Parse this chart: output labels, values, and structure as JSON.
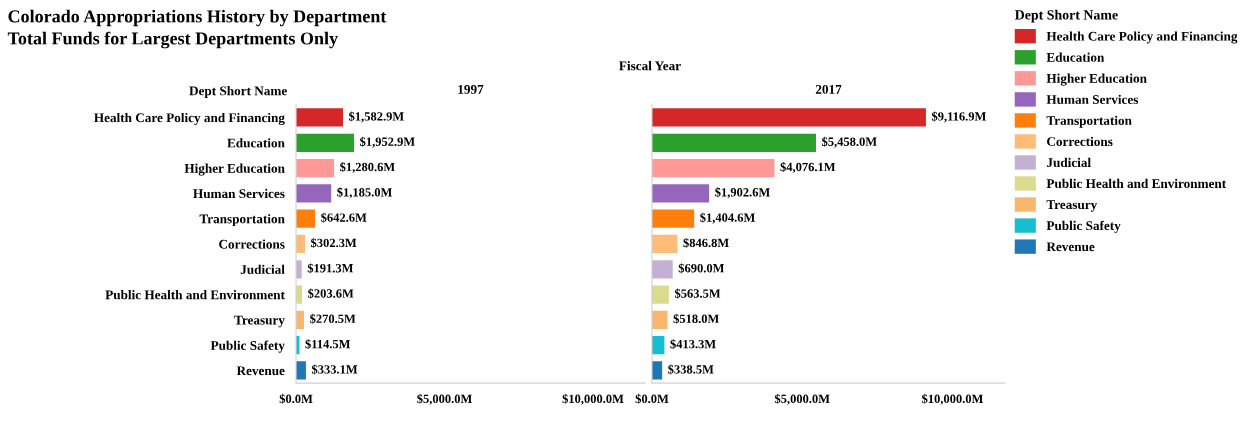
{
  "chart_data": [
    {
      "type": "bar",
      "orientation": "horizontal",
      "stacked": true,
      "title": "1997",
      "annotations": [
        "Colorado Appropriations History by Department",
        "Total Funds for Largest Departments Only",
        "Fiscal Year",
        "Dept Short Name"
      ],
      "categories": [
        "Health Care Policy and Financing",
        "Education",
        "Higher Education",
        "Human Services",
        "Transportation",
        "Corrections",
        "Judicial",
        "Public Health and Environment",
        "Treasury",
        "Public Safety",
        "Revenue"
      ],
      "series": [
        {
          "color": "#d62728",
          "values": [
            1582.9,
            null,
            null,
            null,
            null,
            null,
            null,
            null,
            null,
            null,
            null
          ],
          "value_labels": [
            "$1,582.9M",
            null,
            null,
            null,
            null,
            null,
            null,
            null,
            null,
            null,
            null
          ]
        },
        {
          "color": "#2ca02c",
          "values": [
            null,
            1952.9,
            null,
            null,
            null,
            null,
            null,
            null,
            null,
            null,
            null
          ],
          "value_labels": [
            null,
            "$1,952.9M",
            null,
            null,
            null,
            null,
            null,
            null,
            null,
            null,
            null
          ]
        },
        {
          "color": "#ff9896",
          "values": [
            null,
            null,
            1280.6,
            null,
            null,
            null,
            null,
            null,
            null,
            null,
            null
          ],
          "value_labels": [
            null,
            null,
            "$1,280.6M",
            null,
            null,
            null,
            null,
            null,
            null,
            null,
            null
          ]
        },
        {
          "color": "#9467bd",
          "values": [
            null,
            null,
            null,
            1185.0,
            null,
            null,
            null,
            null,
            null,
            null,
            null
          ],
          "value_labels": [
            null,
            null,
            null,
            "$1,185.0M",
            null,
            null,
            null,
            null,
            null,
            null,
            null
          ]
        },
        {
          "color": "#ff7f0e",
          "values": [
            null,
            null,
            null,
            null,
            642.6,
            null,
            null,
            null,
            null,
            null,
            null
          ],
          "value_labels": [
            null,
            null,
            null,
            null,
            "$642.6M",
            null,
            null,
            null,
            null,
            null,
            null
          ]
        },
        {
          "color": "#ffbb78",
          "values": [
            null,
            null,
            null,
            null,
            null,
            302.3,
            null,
            null,
            null,
            null,
            null
          ],
          "value_labels": [
            null,
            null,
            null,
            null,
            null,
            "$302.3M",
            null,
            null,
            null,
            null,
            null
          ]
        },
        {
          "color": "#c5b0d5",
          "values": [
            null,
            null,
            null,
            null,
            null,
            null,
            191.3,
            null,
            null,
            null,
            null
          ],
          "value_labels": [
            null,
            null,
            null,
            null,
            null,
            null,
            "$191.3M",
            null,
            null,
            null,
            null
          ]
        },
        {
          "color": "#dbdb8d",
          "values": [
            null,
            null,
            null,
            null,
            null,
            null,
            null,
            203.6,
            null,
            null,
            null
          ],
          "value_labels": [
            null,
            null,
            null,
            null,
            null,
            null,
            null,
            "$203.6M",
            null,
            null,
            null
          ]
        },
        {
          "color": "#f7b76f",
          "values": [
            null,
            null,
            null,
            null,
            null,
            null,
            null,
            null,
            270.5,
            null,
            null
          ],
          "value_labels": [
            null,
            null,
            null,
            null,
            null,
            null,
            null,
            null,
            "$270.5M",
            null,
            null
          ]
        },
        {
          "color": "#17becf",
          "values": [
            null,
            null,
            null,
            null,
            null,
            null,
            null,
            null,
            null,
            114.5,
            null
          ],
          "value_labels": [
            null,
            null,
            null,
            null,
            null,
            null,
            null,
            null,
            null,
            "$114.5M",
            null
          ]
        },
        {
          "color": "#1f77b4",
          "values": [
            null,
            null,
            null,
            null,
            null,
            null,
            null,
            null,
            null,
            null,
            333.1
          ],
          "value_labels": [
            null,
            null,
            null,
            null,
            null,
            null,
            null,
            null,
            null,
            null,
            "$333.1M"
          ]
        }
      ],
      "xlim": [
        0,
        11750
      ],
      "xticks": [
        {
          "value": 0,
          "label": "$0.0M"
        },
        {
          "value": 5000,
          "label": "$5,000.0M"
        },
        {
          "value": 10000,
          "label": "$10,000.0M"
        }
      ],
      "grid": false,
      "legend": false
    },
    {
      "type": "bar",
      "orientation": "horizontal",
      "stacked": true,
      "title": "2017",
      "legend_title": "Dept Short Name",
      "categories": [
        null,
        null,
        null,
        null,
        null,
        null,
        null,
        null,
        null,
        null,
        null
      ],
      "series": [
        {
          "name": "Health Care Policy and Financing",
          "color": "#d62728",
          "values": [
            9116.9,
            null,
            null,
            null,
            null,
            null,
            null,
            null,
            null,
            null,
            null
          ],
          "value_labels": [
            "$9,116.9M",
            null,
            null,
            null,
            null,
            null,
            null,
            null,
            null,
            null,
            null
          ]
        },
        {
          "name": "Education",
          "color": "#2ca02c",
          "values": [
            null,
            5458.0,
            null,
            null,
            null,
            null,
            null,
            null,
            null,
            null,
            null
          ],
          "value_labels": [
            null,
            "$5,458.0M",
            null,
            null,
            null,
            null,
            null,
            null,
            null,
            null,
            null
          ]
        },
        {
          "name": "Higher Education",
          "color": "#ff9896",
          "values": [
            null,
            null,
            4076.1,
            null,
            null,
            null,
            null,
            null,
            null,
            null,
            null
          ],
          "value_labels": [
            null,
            null,
            "$4,076.1M",
            null,
            null,
            null,
            null,
            null,
            null,
            null,
            null
          ]
        },
        {
          "name": "Human Services",
          "color": "#9467bd",
          "values": [
            null,
            null,
            null,
            1902.6,
            null,
            null,
            null,
            null,
            null,
            null,
            null
          ],
          "value_labels": [
            null,
            null,
            null,
            "$1,902.6M",
            null,
            null,
            null,
            null,
            null,
            null,
            null
          ]
        },
        {
          "name": "Transportation",
          "color": "#ff7f0e",
          "values": [
            null,
            null,
            null,
            null,
            1404.6,
            null,
            null,
            null,
            null,
            null,
            null
          ],
          "value_labels": [
            null,
            null,
            null,
            null,
            "$1,404.6M",
            null,
            null,
            null,
            null,
            null,
            null
          ]
        },
        {
          "name": "Corrections",
          "color": "#ffbb78",
          "values": [
            null,
            null,
            null,
            null,
            null,
            846.8,
            null,
            null,
            null,
            null,
            null
          ],
          "value_labels": [
            null,
            null,
            null,
            null,
            null,
            "$846.8M",
            null,
            null,
            null,
            null,
            null
          ]
        },
        {
          "name": "Judicial",
          "color": "#c5b0d5",
          "values": [
            null,
            null,
            null,
            null,
            null,
            null,
            690.0,
            null,
            null,
            null,
            null
          ],
          "value_labels": [
            null,
            null,
            null,
            null,
            null,
            null,
            "$690.0M",
            null,
            null,
            null,
            null
          ]
        },
        {
          "name": "Public Health and Environment",
          "color": "#dbdb8d",
          "values": [
            null,
            null,
            null,
            null,
            null,
            null,
            null,
            563.5,
            null,
            null,
            null
          ],
          "value_labels": [
            null,
            null,
            null,
            null,
            null,
            null,
            null,
            "$563.5M",
            null,
            null,
            null
          ]
        },
        {
          "name": "Treasury",
          "color": "#f7b76f",
          "values": [
            null,
            null,
            null,
            null,
            null,
            null,
            null,
            null,
            518.0,
            null,
            null
          ],
          "value_labels": [
            null,
            null,
            null,
            null,
            null,
            null,
            null,
            null,
            "$518.0M",
            null,
            null
          ]
        },
        {
          "name": "Public Safety",
          "color": "#17becf",
          "values": [
            null,
            null,
            null,
            null,
            null,
            null,
            null,
            null,
            null,
            413.3,
            null
          ],
          "value_labels": [
            null,
            null,
            null,
            null,
            null,
            null,
            null,
            null,
            null,
            "$413.3M",
            null
          ]
        },
        {
          "name": "Revenue",
          "color": "#1f77b4",
          "values": [
            null,
            null,
            null,
            null,
            null,
            null,
            null,
            null,
            null,
            null,
            338.5
          ],
          "value_labels": [
            null,
            null,
            null,
            null,
            null,
            null,
            null,
            null,
            null,
            null,
            "$338.5M"
          ]
        }
      ],
      "xlim": [
        0,
        11750
      ],
      "xticks": [
        {
          "value": 0,
          "label": "$0.0M"
        },
        {
          "value": 5000,
          "label": "$5,000.0M"
        },
        {
          "value": 10000,
          "label": "$10,000.0M"
        }
      ],
      "tick_labels": "x",
      "grid": false,
      "legend": "right"
    }
  ]
}
